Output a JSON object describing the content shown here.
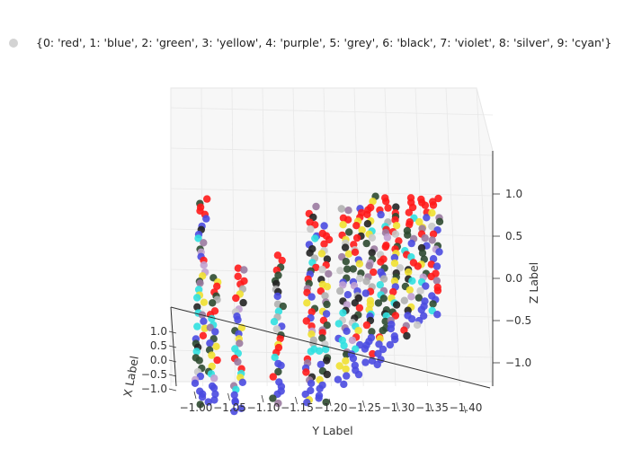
{
  "chart_data": {
    "type": "scatter",
    "subtype": "3d-scatter",
    "legend": {
      "label": "{0: 'red', 1: 'blue', 2: 'green', 3: 'yellow', 4: 'purple', 5: 'grey', 6: 'black', 7: 'violet', 8: 'silver', 9: 'cyan'}",
      "marker_color": "#d3d3d3",
      "placement": "top-left"
    },
    "class_colors": {
      "0": "#ff1a1a",
      "1": "#4a4ae0",
      "2": "#2e4a30",
      "3": "#f0e030",
      "4": "#9a7aa0",
      "5": "#b0b0b0",
      "6": "#222222",
      "7": "#c0a0d0",
      "8": "#c8c8c8",
      "9": "#30e0e0"
    },
    "axes": {
      "x": {
        "label": "X Label",
        "ticks": [
          "1.0",
          "0.5",
          "0.0",
          "−0.5",
          "−1.0"
        ],
        "range": [
          -1.0,
          1.0
        ]
      },
      "y": {
        "label": "Y Label",
        "ticks": [
          "−1.00",
          "−1.05",
          "−1.10",
          "−1.15",
          "−1.20",
          "−1.25",
          "−1.30",
          "−1.35",
          "−1.40"
        ],
        "range": [
          -1.42,
          -0.98
        ]
      },
      "z": {
        "label": "Z Label",
        "ticks": [
          "1.0",
          "0.5",
          "0.0",
          "−0.5",
          "−1.0"
        ],
        "range": [
          -1.3,
          1.3
        ]
      }
    },
    "grid": true,
    "columns": [
      {
        "y": -1.02,
        "z_top": 1.0,
        "z_bottom": -0.9
      },
      {
        "y": -1.04,
        "z_top": 0.2,
        "z_bottom": -0.9
      },
      {
        "y": -1.08,
        "z_top": 0.3,
        "z_bottom": -1.0
      },
      {
        "y": -1.14,
        "z_top": 0.4,
        "z_bottom": -0.9
      },
      {
        "y": -1.19,
        "z_top": 0.9,
        "z_bottom": -0.9
      },
      {
        "y": -1.21,
        "z_top": 0.7,
        "z_bottom": -0.9
      },
      {
        "y": -1.24,
        "z_top": 0.9,
        "z_bottom": -0.7
      },
      {
        "y": -1.26,
        "z_top": 0.9,
        "z_bottom": -0.6
      },
      {
        "y": -1.28,
        "z_top": 1.0,
        "z_bottom": -0.5
      },
      {
        "y": -1.3,
        "z_top": 1.0,
        "z_bottom": -0.5
      },
      {
        "y": -1.32,
        "z_top": 0.9,
        "z_bottom": -0.3
      },
      {
        "y": -1.34,
        "z_top": 1.0,
        "z_bottom": -0.2
      },
      {
        "y": -1.36,
        "z_top": 1.0,
        "z_bottom": -0.1
      },
      {
        "y": -1.38,
        "z_top": 1.0,
        "z_bottom": 0.0
      }
    ]
  }
}
